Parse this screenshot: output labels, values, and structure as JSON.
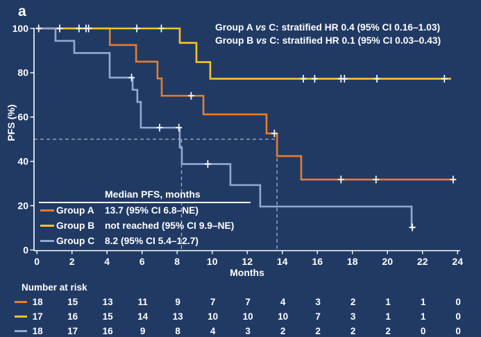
{
  "panel_label": "a",
  "colors": {
    "background": "#213A64",
    "text": "#FFFFFF",
    "axis": "#FFFFFF",
    "dashed_reference": "#A8B2C2",
    "censor_mark": "#FFFFFF",
    "group_a": "#E87D2B",
    "group_b": "#F6C42A",
    "group_c": "#93A8D5"
  },
  "hr_annotations": [
    {
      "pre": "Group A ",
      "vs": "vs",
      "post": " C: stratified HR 0.4 (95% CI 0.16–1.03)"
    },
    {
      "pre": "Group B ",
      "vs": "vs",
      "post": " C: stratified HR 0.1 (95% CI 0.03–0.43)"
    }
  ],
  "chart_data": {
    "type": "line",
    "subtype": "kaplan-meier-step",
    "xlabel": "Months",
    "ylabel": "PFS (%)",
    "xlim": [
      0,
      24
    ],
    "ylim": [
      0,
      100
    ],
    "x_ticks": [
      0,
      2,
      4,
      6,
      8,
      10,
      12,
      14,
      16,
      18,
      20,
      22,
      24
    ],
    "y_ticks": [
      0,
      20,
      40,
      60,
      80,
      100
    ],
    "grid": false,
    "series": [
      {
        "name": "Group A",
        "color": "#E87D2B",
        "start": [
          0,
          100
        ],
        "steps": [
          [
            4.16,
            92.5
          ],
          [
            5.66,
            85.0
          ],
          [
            6.88,
            77.4
          ],
          [
            7.12,
            69.6
          ],
          [
            9.5,
            61.2
          ],
          [
            13.1,
            52.6
          ],
          [
            13.7,
            42.4
          ],
          [
            15.08,
            31.8
          ]
        ],
        "end_month": 23.83,
        "censors": [
          [
            0.1,
            100
          ],
          [
            1.3,
            100
          ],
          [
            2.4,
            100
          ],
          [
            2.8,
            100
          ],
          [
            8.8,
            69.6
          ],
          [
            13.55,
            52.6
          ],
          [
            17.35,
            31.8
          ],
          [
            19.35,
            31.8
          ],
          [
            23.75,
            31.8
          ]
        ]
      },
      {
        "name": "Group B",
        "color": "#F6C42A",
        "start": [
          0,
          100
        ],
        "steps": [
          [
            8.15,
            93.5
          ],
          [
            9.1,
            84.8
          ],
          [
            9.89,
            77.3
          ]
        ],
        "end_month": 23.63,
        "censors": [
          [
            2.95,
            100
          ],
          [
            5.7,
            100
          ],
          [
            7.1,
            100
          ],
          [
            15.2,
            77.3
          ],
          [
            15.85,
            77.3
          ],
          [
            17.35,
            77.3
          ],
          [
            17.55,
            77.3
          ],
          [
            19.4,
            77.3
          ],
          [
            23.25,
            77.3
          ]
        ]
      },
      {
        "name": "Group C",
        "color": "#93A8D5",
        "start": [
          0,
          100
        ],
        "steps": [
          [
            1.06,
            94.4
          ],
          [
            2.13,
            88.9
          ],
          [
            4.15,
            77.8
          ],
          [
            5.46,
            72.3
          ],
          [
            5.73,
            66.8
          ],
          [
            5.93,
            55.2
          ],
          [
            8.15,
            46.2
          ],
          [
            8.27,
            38.8
          ],
          [
            11.04,
            29.3
          ],
          [
            12.74,
            19.6
          ],
          [
            21.38,
            10.2
          ]
        ],
        "end_month": 21.55,
        "censors": [
          [
            5.4,
            77.8
          ],
          [
            7.0,
            55.2
          ],
          [
            8.1,
            55.2
          ],
          [
            9.75,
            38.8
          ],
          [
            21.42,
            10.2
          ]
        ]
      }
    ],
    "reference_lines": {
      "horizontal_pct": 50,
      "horizontal_to_month": 13.7,
      "vertical_months": [
        8.25,
        13.7
      ]
    }
  },
  "median_table": {
    "header": "Median PFS, months",
    "rows": [
      {
        "group": "Group A",
        "value": "13.7 (95% CI 6.8–NE)"
      },
      {
        "group": "Group B",
        "value": "not reached (95% CI 9.9–NE)"
      },
      {
        "group": "Group C",
        "value": "8.2 (95% CI 5.4–12.7)"
      }
    ]
  },
  "risk_table": {
    "header": "Number at risk",
    "months": [
      0,
      2,
      4,
      6,
      8,
      10,
      12,
      14,
      16,
      18,
      20,
      22,
      24
    ],
    "rows": [
      {
        "group": "Group A",
        "counts": [
          18,
          15,
          13,
          11,
          9,
          7,
          7,
          4,
          3,
          2,
          1,
          1,
          0
        ]
      },
      {
        "group": "Group B",
        "counts": [
          17,
          16,
          15,
          14,
          13,
          10,
          10,
          10,
          7,
          3,
          1,
          1,
          0
        ]
      },
      {
        "group": "Group C",
        "counts": [
          18,
          17,
          16,
          9,
          8,
          4,
          3,
          2,
          2,
          2,
          2,
          0,
          0
        ]
      }
    ]
  }
}
